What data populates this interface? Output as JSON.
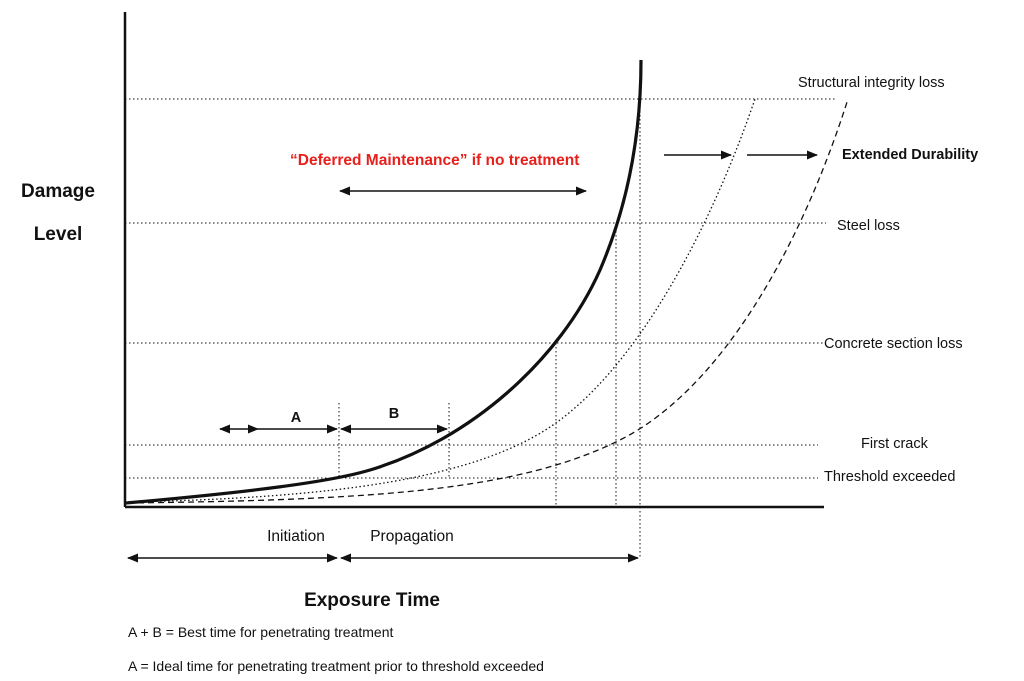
{
  "axes": {
    "y_label_line1": "Damage",
    "y_label_line2": "Level",
    "x_label": "Exposure Time"
  },
  "levels": {
    "structural_integrity_loss": "Structural integrity loss",
    "steel_loss": "Steel loss",
    "concrete_section_loss": "Concrete section loss",
    "first_crack": "First crack",
    "threshold_exceeded": "Threshold exceeded"
  },
  "annotations": {
    "deferred_maintenance": "“Deferred Maintenance” if no treatment",
    "extended_durability": "Extended Durability",
    "label_a": "A",
    "label_b": "B",
    "initiation": "Initiation",
    "propagation": "Propagation"
  },
  "notes": {
    "line1": "A + B = Best time for penetrating treatment",
    "line2": "A  = Ideal time for penetrating treatment prior to threshold exceeded"
  },
  "colors": {
    "ink": "#111111",
    "highlight": "#e8201c"
  }
}
